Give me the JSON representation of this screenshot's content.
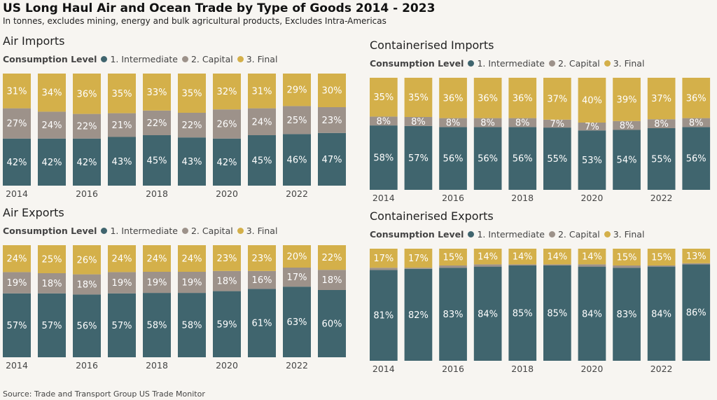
{
  "title": "US Long Haul Air and Ocean Trade by Type of Goods 2014 - 2023",
  "subtitle": "In tonnes, excludes mining, energy and bulk agricultural products, Excludes Intra-Americas",
  "source": "Source: Trade and Transport Group US Trade Monitor",
  "legend": {
    "title": "Consumption Level",
    "items": [
      "1. Intermediate",
      "2. Capital",
      "3. Final"
    ]
  },
  "colors": {
    "intermediate": "#40656e",
    "capital": "#9d928a",
    "final": "#d4b04a",
    "background": "#f7f5f1"
  },
  "chart_data": [
    {
      "type": "bar",
      "stacked": true,
      "title": "Air Imports",
      "categories": [
        "2014",
        "2015",
        "2016",
        "2017",
        "2018",
        "2019",
        "2020",
        "2021",
        "2022",
        "2023"
      ],
      "x_tick_labels": [
        "2014",
        "",
        "2016",
        "",
        "2018",
        "",
        "2020",
        "",
        "2022",
        ""
      ],
      "series": [
        {
          "name": "1. Intermediate",
          "values": [
            42,
            42,
            42,
            43,
            45,
            43,
            42,
            45,
            46,
            47
          ]
        },
        {
          "name": "2. Capital",
          "values": [
            27,
            24,
            22,
            21,
            22,
            22,
            26,
            24,
            25,
            23
          ]
        },
        {
          "name": "3. Final",
          "values": [
            31,
            34,
            36,
            35,
            33,
            35,
            32,
            31,
            29,
            30
          ]
        }
      ]
    },
    {
      "type": "bar",
      "stacked": true,
      "title": "Containerised Imports",
      "categories": [
        "2014",
        "2015",
        "2016",
        "2017",
        "2018",
        "2019",
        "2020",
        "2021",
        "2022",
        "2023"
      ],
      "x_tick_labels": [
        "2014",
        "",
        "2016",
        "",
        "2018",
        "",
        "2020",
        "",
        "2022",
        ""
      ],
      "series": [
        {
          "name": "1. Intermediate",
          "values": [
            58,
            57,
            56,
            56,
            56,
            55,
            53,
            54,
            55,
            56
          ]
        },
        {
          "name": "2. Capital",
          "values": [
            8,
            8,
            8,
            8,
            8,
            7,
            7,
            8,
            8,
            8
          ]
        },
        {
          "name": "3. Final",
          "values": [
            35,
            35,
            36,
            36,
            36,
            37,
            40,
            39,
            37,
            36
          ]
        }
      ]
    },
    {
      "type": "bar",
      "stacked": true,
      "title": "Air Exports",
      "categories": [
        "2014",
        "2015",
        "2016",
        "2017",
        "2018",
        "2019",
        "2020",
        "2021",
        "2022",
        "2023"
      ],
      "x_tick_labels": [
        "2014",
        "",
        "2016",
        "",
        "2018",
        "",
        "2020",
        "",
        "2022",
        ""
      ],
      "series": [
        {
          "name": "1. Intermediate",
          "values": [
            57,
            57,
            56,
            57,
            58,
            58,
            59,
            61,
            63,
            60
          ]
        },
        {
          "name": "2. Capital",
          "values": [
            19,
            18,
            18,
            19,
            19,
            19,
            18,
            16,
            17,
            18
          ]
        },
        {
          "name": "3. Final",
          "values": [
            24,
            25,
            26,
            24,
            24,
            24,
            23,
            23,
            20,
            22
          ]
        }
      ]
    },
    {
      "type": "bar",
      "stacked": true,
      "title": "Containerised Exports",
      "categories": [
        "2014",
        "2015",
        "2016",
        "2017",
        "2018",
        "2019",
        "2020",
        "2021",
        "2022",
        "2023"
      ],
      "x_tick_labels": [
        "2014",
        "",
        "2016",
        "",
        "2018",
        "",
        "2020",
        "",
        "2022",
        ""
      ],
      "series": [
        {
          "name": "1. Intermediate",
          "values": [
            81,
            82,
            83,
            84,
            85,
            85,
            84,
            83,
            84,
            86
          ]
        },
        {
          "name": "2. Capital",
          "values": [
            2,
            1,
            2,
            2,
            1,
            1,
            2,
            2,
            1,
            1
          ],
          "labels_hidden": true
        },
        {
          "name": "3. Final",
          "values": [
            17,
            17,
            15,
            14,
            14,
            14,
            14,
            15,
            15,
            13
          ]
        }
      ]
    }
  ]
}
